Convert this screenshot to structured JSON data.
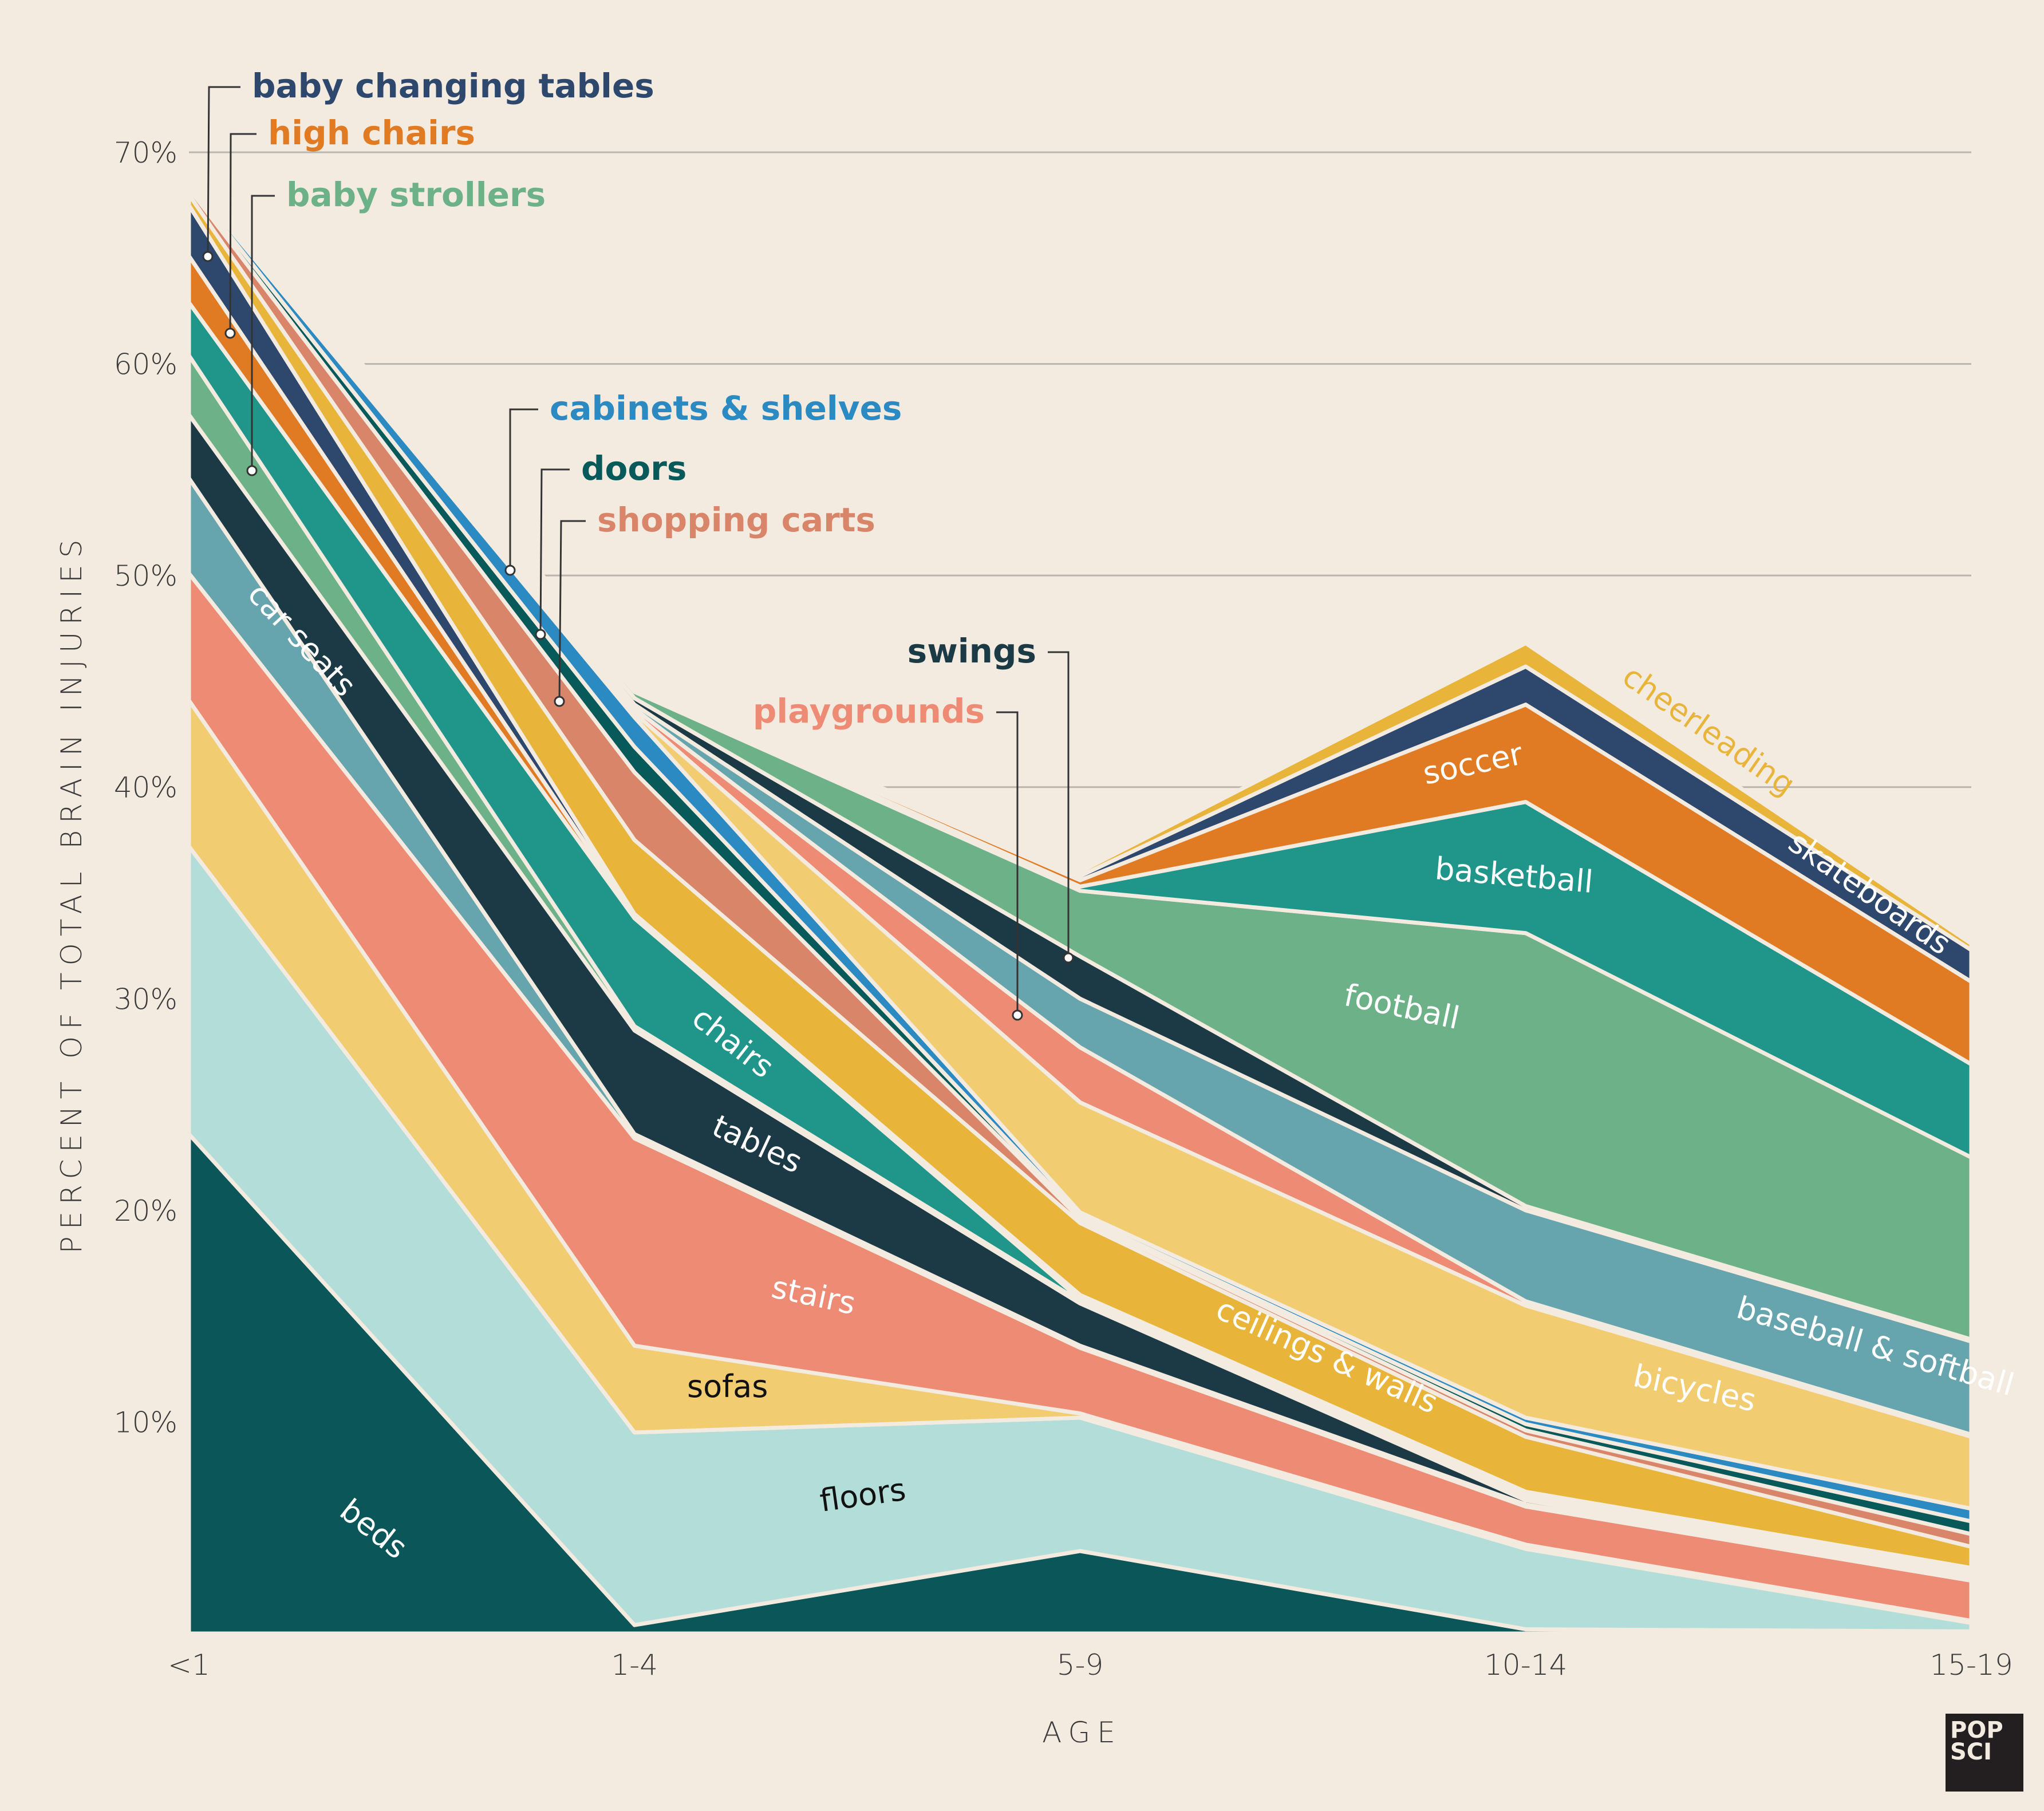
{
  "chart_data": {
    "type": "area",
    "stacked": true,
    "title": "",
    "xlabel": "AGE",
    "ylabel": "PERCENT OF TOTAL BRAIN INJURIES",
    "categories": [
      "<1",
      "1-4",
      "5-9",
      "10-14",
      "15-19"
    ],
    "ylim": [
      0,
      70
    ],
    "yticks": [
      {
        "value": 10,
        "label": "10%"
      },
      {
        "value": 20,
        "label": "20%"
      },
      {
        "value": 30,
        "label": "30%"
      },
      {
        "value": 40,
        "label": "40%"
      },
      {
        "value": 50,
        "label": "50%"
      },
      {
        "value": 60,
        "label": "60%"
      },
      {
        "value": 70,
        "label": "70%"
      }
    ],
    "grid": true,
    "series": [
      {
        "name": "beds",
        "color": "#0a5658",
        "values": [
          23.6,
          0.4,
          3.9,
          0.2,
          0.1
        ]
      },
      {
        "name": "floors",
        "color": "#b3ddd8",
        "values": [
          13.6,
          9.1,
          6.3,
          3.8,
          0.4
        ]
      },
      {
        "name": "sofas",
        "color": "#f2cc70",
        "values": [
          6.9,
          4.1,
          0.2,
          0.2,
          0.1
        ]
      },
      {
        "name": "stairs",
        "color": "#ee8b74",
        "values": [
          6.0,
          9.8,
          3.1,
          1.8,
          1.9
        ]
      },
      {
        "name": "car seats",
        "color": "#67a5ae",
        "values": [
          4.5,
          0.2,
          0.1,
          0.1,
          0.1
        ]
      },
      {
        "name": "tables",
        "color": "#1c3a45",
        "values": [
          3.0,
          4.9,
          2.0,
          0.2,
          0.1
        ]
      },
      {
        "name": "baby strollers",
        "color": "#6db188",
        "values": [
          2.8,
          0.2,
          0.1,
          0.1,
          0.1
        ]
      },
      {
        "name": "chairs",
        "color": "#20958a",
        "values": [
          2.5,
          5.1,
          0.1,
          0.1,
          0.1
        ]
      },
      {
        "name": "high chairs",
        "color": "#e07b23",
        "values": [
          2.2,
          0.1,
          0.1,
          0.1,
          0.1
        ]
      },
      {
        "name": "baby changing tables",
        "color": "#2e486d",
        "values": [
          2.4,
          0.1,
          0.1,
          0.1,
          0.1
        ]
      },
      {
        "name": "ceilings & walls",
        "color": "#e8b53a",
        "values": [
          0.5,
          3.5,
          3.4,
          2.6,
          1.0
        ]
      },
      {
        "name": "shopping carts",
        "color": "#d9856a",
        "values": [
          0.3,
          3.2,
          0.2,
          0.3,
          0.6
        ]
      },
      {
        "name": "doors",
        "color": "#08595a",
        "values": [
          0.2,
          1.2,
          0.1,
          0.3,
          0.6
        ]
      },
      {
        "name": "cabinets & shelves",
        "color": "#2b8ac2",
        "values": [
          0.2,
          1.4,
          0.2,
          0.3,
          0.6
        ]
      },
      {
        "name": "bicycles",
        "color": "#f2cc70",
        "values": [
          0.1,
          0.2,
          5.2,
          5.3,
          3.4
        ]
      },
      {
        "name": "playgrounds",
        "color": "#ee8b74",
        "values": [
          0.1,
          0.2,
          2.6,
          0.2,
          0.1
        ]
      },
      {
        "name": "baseball & softball",
        "color": "#67a5ae",
        "values": [
          0.1,
          0.2,
          2.3,
          4.3,
          4.4
        ]
      },
      {
        "name": "swings",
        "color": "#1c3a45",
        "values": [
          0.1,
          0.3,
          2.0,
          0.2,
          0.1
        ]
      },
      {
        "name": "football",
        "color": "#6db188",
        "values": [
          0.1,
          0.3,
          3.1,
          12.9,
          8.6
        ]
      },
      {
        "name": "basketball",
        "color": "#20958a",
        "values": [
          0.1,
          0.1,
          0.2,
          6.2,
          4.4
        ]
      },
      {
        "name": "soccer",
        "color": "#e07b23",
        "values": [
          0.1,
          0.1,
          0.3,
          4.6,
          3.9
        ]
      },
      {
        "name": "skateboards",
        "color": "#2e486d",
        "values": [
          0.1,
          0.1,
          0.2,
          1.8,
          1.5
        ]
      },
      {
        "name": "cheerleading",
        "color": "#e8b53a",
        "values": [
          0.1,
          0.1,
          0.2,
          1.1,
          0.3
        ]
      }
    ],
    "inline_labels": [
      {
        "series": "beds",
        "text": "beds",
        "color": "#ffffff"
      },
      {
        "series": "floors",
        "text": "floors",
        "color": "#111111"
      },
      {
        "series": "sofas",
        "text": "sofas",
        "color": "#111111"
      },
      {
        "series": "stairs",
        "text": "stairs",
        "color": "#ffffff"
      },
      {
        "series": "car seats",
        "text": "car seats",
        "color": "#ffffff"
      },
      {
        "series": "tables",
        "text": "tables",
        "color": "#ffffff"
      },
      {
        "series": "chairs",
        "text": "chairs",
        "color": "#ffffff"
      },
      {
        "series": "ceilings & walls",
        "text": "ceilings & walls",
        "color": "#ffffff"
      },
      {
        "series": "bicycles",
        "text": "bicycles",
        "color": "#ffffff"
      },
      {
        "series": "baseball & softball",
        "text": "baseball & softball",
        "color": "#ffffff"
      },
      {
        "series": "football",
        "text": "football",
        "color": "#ffffff"
      },
      {
        "series": "basketball",
        "text": "basketball",
        "color": "#ffffff"
      },
      {
        "series": "soccer",
        "text": "soccer",
        "color": "#ffffff"
      },
      {
        "series": "skateboards",
        "text": "skateboards",
        "color": "#ffffff"
      },
      {
        "series": "cheerleading",
        "text": "cheerleading",
        "color": "#e8b53a"
      }
    ],
    "callouts": [
      {
        "series": "baby changing tables",
        "text": "baby changing tables",
        "color": "#2e486d"
      },
      {
        "series": "high chairs",
        "text": "high chairs",
        "color": "#e07b23"
      },
      {
        "series": "baby strollers",
        "text": "baby strollers",
        "color": "#6db188"
      },
      {
        "series": "cabinets & shelves",
        "text": "cabinets & shelves",
        "color": "#2b8ac2"
      },
      {
        "series": "doors",
        "text": "doors",
        "color": "#08595a"
      },
      {
        "series": "shopping carts",
        "text": "shopping carts",
        "color": "#d9856a"
      },
      {
        "series": "swings",
        "text": "swings",
        "color": "#1c3a45"
      },
      {
        "series": "playgrounds",
        "text": "playgrounds",
        "color": "#ee8b74"
      }
    ]
  },
  "logo": {
    "line1": "POP",
    "line2": "SCI"
  }
}
